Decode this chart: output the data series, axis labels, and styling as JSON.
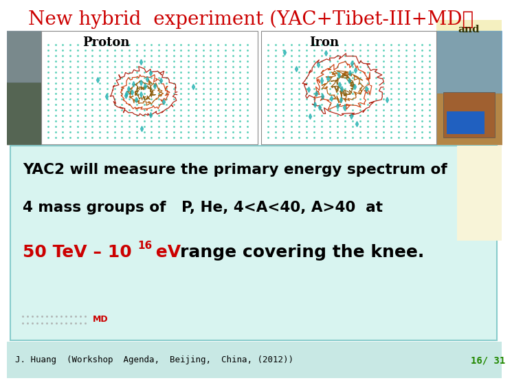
{
  "title": "New hybrid  experiment (YAC+Tibet-III+MD）",
  "title_color": "#cc0000",
  "title_fontsize": 20,
  "bg_color": "#ffffff",
  "bottom_bar_color": "#d8f4f0",
  "bottom_bar_border": "#88cccc",
  "footer_bar_color": "#c8e8e4",
  "text_line1": "YAC2 will measure the primary energy spectrum of",
  "text_line2": "4 mass groups of   P, He, 4<A<40, A>40  at",
  "text_line3_red": "50 TeV – 10",
  "text_line3_sup": "16",
  "text_line3_mid": " eV",
  "text_line3_black": " range covering the knee.",
  "text_md": "MD",
  "text_line1_color": "#000000",
  "text_line2_color": "#000000",
  "text_line3_color": "#cc0000",
  "text_black_color": "#000000",
  "text_md_color": "#cc0000",
  "footer_text": "J. Huang  (Workshop  Agenda,  Beijing,  China, (2012))",
  "footer_right": "16/ 31",
  "footer_color": "#228800",
  "footer_text_color": "#000000",
  "and_text": "and",
  "and_bg": "#f5f0c0",
  "proton_label": "Proton",
  "iron_label": "Iron",
  "proton_label_color": "#000000",
  "iron_label_color": "#000000",
  "plot_bg": "#ffffff",
  "dot_color": "#20c0a0",
  "contour_colors": [
    "#aa1100",
    "#cc3300",
    "#aa5500",
    "#885500"
  ],
  "diamond_color": "#20b0b0"
}
